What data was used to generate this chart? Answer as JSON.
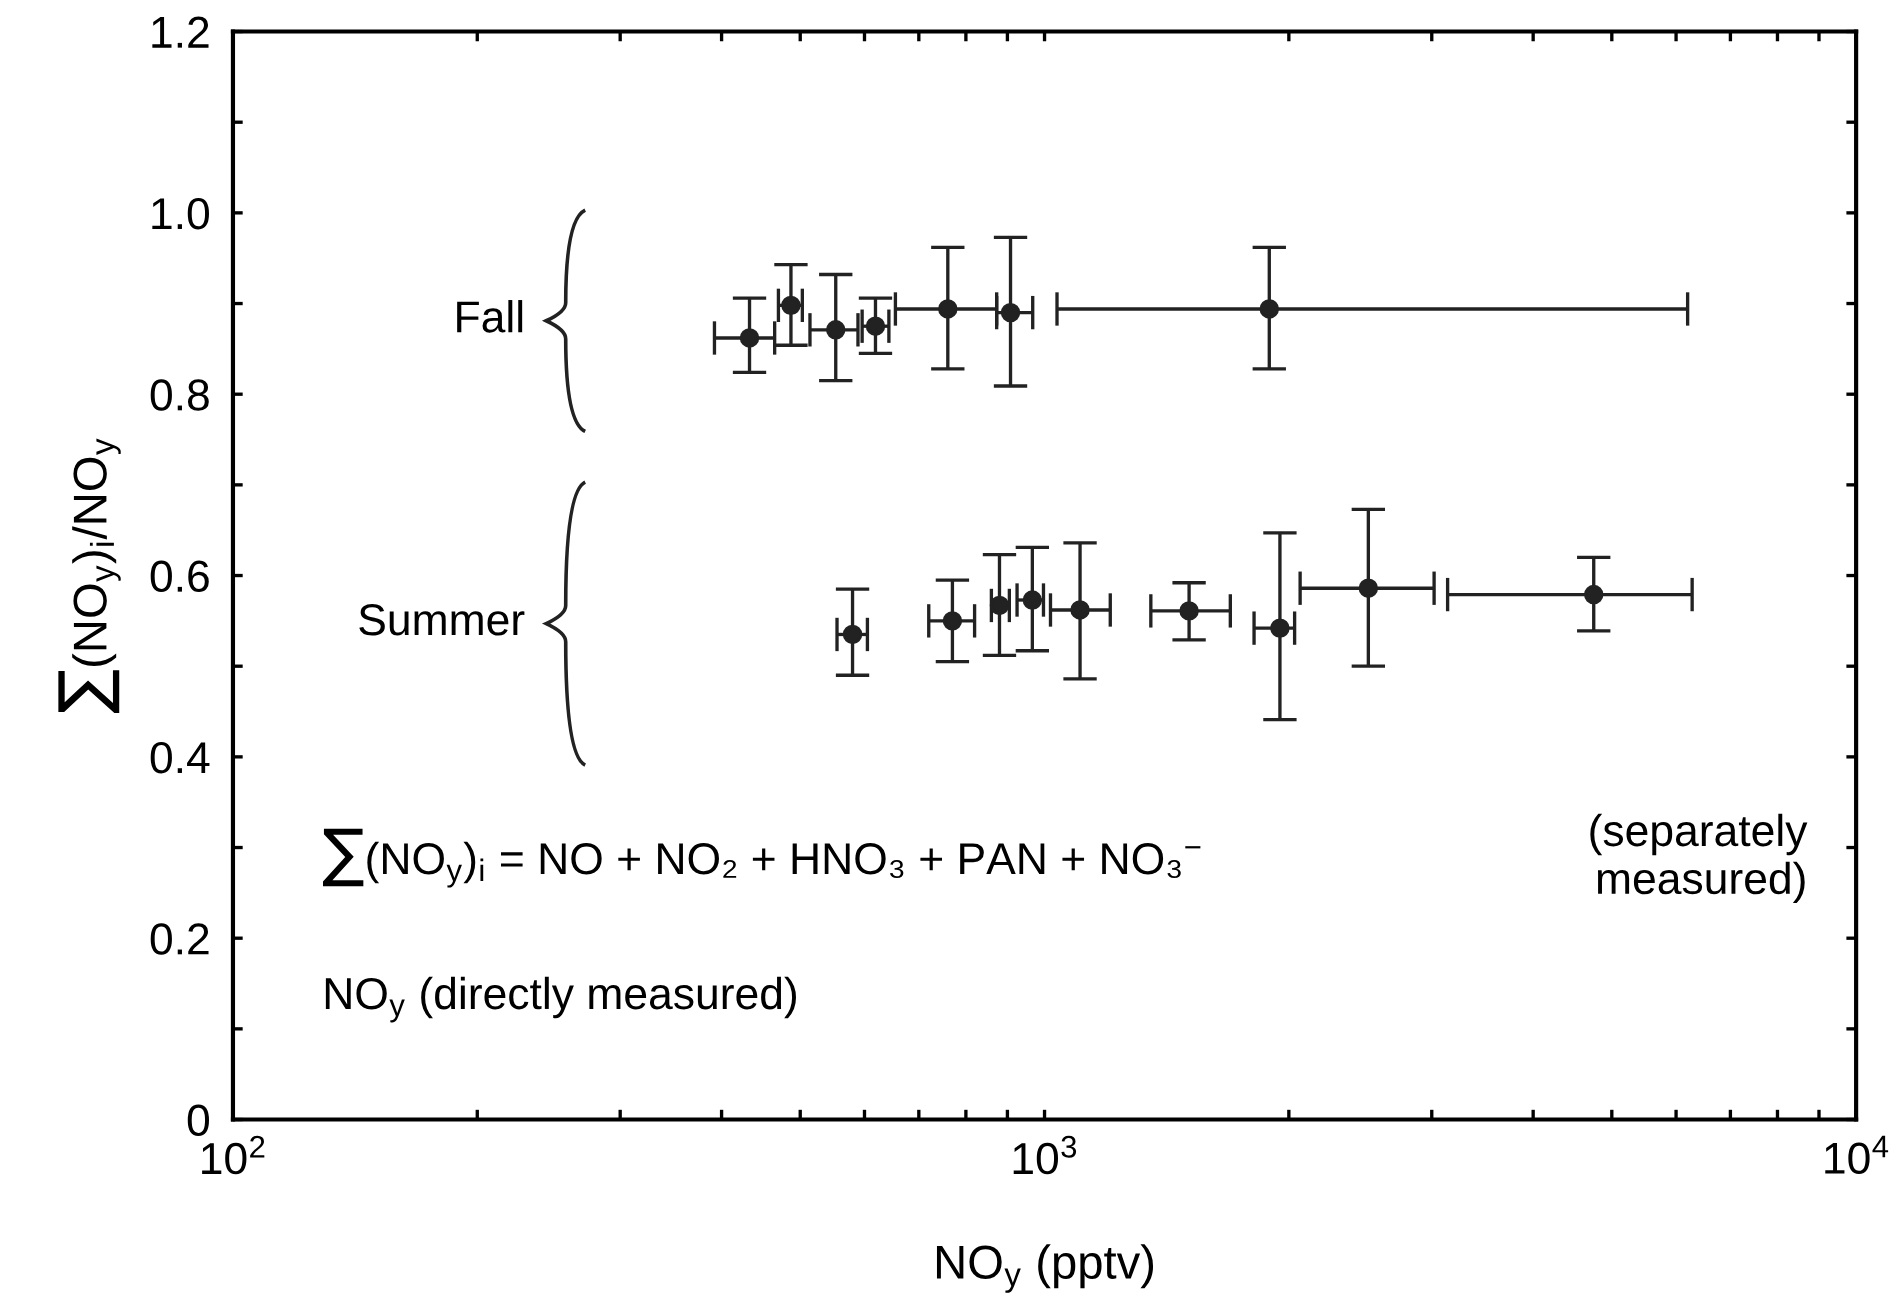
{
  "chart_data": {
    "type": "scatter",
    "xlabel": "NO$_{y}$ (pptv)",
    "ylabel": "∑(NO$_{y}$)$_{i}$/NO$_{y}$",
    "log": "x",
    "xlim": [
      100,
      10000
    ],
    "xticks": [
      {
        "value": 100,
        "label": "10$^{2}$"
      },
      {
        "value": 200,
        "label": null
      },
      {
        "value": 300,
        "label": null
      },
      {
        "value": 400,
        "label": null
      },
      {
        "value": 500,
        "label": null
      },
      {
        "value": 600,
        "label": null
      },
      {
        "value": 700,
        "label": null
      },
      {
        "value": 800,
        "label": null
      },
      {
        "value": 900,
        "label": null
      },
      {
        "value": 1000,
        "label": "10$^{3}$"
      },
      {
        "value": 2000,
        "label": null
      },
      {
        "value": 3000,
        "label": null
      },
      {
        "value": 4000,
        "label": null
      },
      {
        "value": 5000,
        "label": null
      },
      {
        "value": 6000,
        "label": null
      },
      {
        "value": 7000,
        "label": null
      },
      {
        "value": 8000,
        "label": null
      },
      {
        "value": 9000,
        "label": null
      },
      {
        "value": 10000,
        "label": "10$^{4}$"
      }
    ],
    "ylim": [
      0,
      1.2
    ],
    "yticks": [
      0,
      {
        "value": 0.1,
        "label": null
      },
      0.2,
      {
        "value": 0.3,
        "label": null
      },
      0.4,
      {
        "value": 0.5,
        "label": null
      },
      0.6,
      {
        "value": 0.7,
        "label": null
      },
      0.8,
      {
        "value": 0.9,
        "label": null
      },
      {
        "value": 1.0,
        "label": "1.0"
      },
      {
        "value": 1.1,
        "label": null
      },
      1.2
    ],
    "marker": "circle",
    "grid": false,
    "legend": false,
    "series": [
      {
        "color": "#222222",
        "x": [
          433,
          487,
          553,
          619,
          760,
          908,
          1892
        ],
        "values": [
          0.862,
          0.898,
          0.871,
          0.875,
          0.894,
          0.89,
          0.894
        ],
        "errors": [
          [
            0.824,
            0.906
          ],
          [
            0.854,
            0.943
          ],
          [
            0.815,
            0.932
          ],
          [
            0.845,
            0.906
          ],
          [
            0.828,
            0.962
          ],
          [
            0.809,
            0.973
          ],
          [
            0.828,
            0.962
          ]
        ],
        "xerrors": [
          [
            392,
            465
          ],
          [
            470,
            503
          ],
          [
            514,
            589
          ],
          [
            596,
            643
          ],
          [
            655,
            873
          ],
          [
            873,
            967
          ],
          [
            1036,
            6200
          ]
        ]
      },
      {
        "color": "#222222",
        "x": [
          580,
          770,
          880,
          966,
          1106,
          1507,
          1950,
          2506,
          4750
        ],
        "values": [
          0.535,
          0.55,
          0.567,
          0.573,
          0.562,
          0.561,
          0.542,
          0.586,
          0.579
        ],
        "errors": [
          [
            0.49,
            0.585
          ],
          [
            0.505,
            0.595
          ],
          [
            0.512,
            0.623
          ],
          [
            0.517,
            0.631
          ],
          [
            0.486,
            0.636
          ],
          [
            0.529,
            0.592
          ],
          [
            0.441,
            0.647
          ],
          [
            0.5,
            0.673
          ],
          [
            0.539,
            0.62
          ]
        ],
        "xerrors": [
          [
            555,
            605
          ],
          [
            720,
            820
          ],
          [
            860,
            905
          ],
          [
            925,
            997
          ],
          [
            1017,
            1205
          ],
          [
            1352,
            1694
          ],
          [
            1812,
            2033
          ],
          [
            2065,
            3020
          ],
          [
            3138,
            6280
          ]
        ]
      }
    ],
    "annotations": [
      "Fall",
      "Summer",
      "∑(NO$_{y}$)$_{i}$ = NO + NO₂ + HNO₃ + PAN + NO₃$^{−}$",
      "(separately\nmeasured)",
      "NO$_{y}$ (directly measured)"
    ]
  }
}
